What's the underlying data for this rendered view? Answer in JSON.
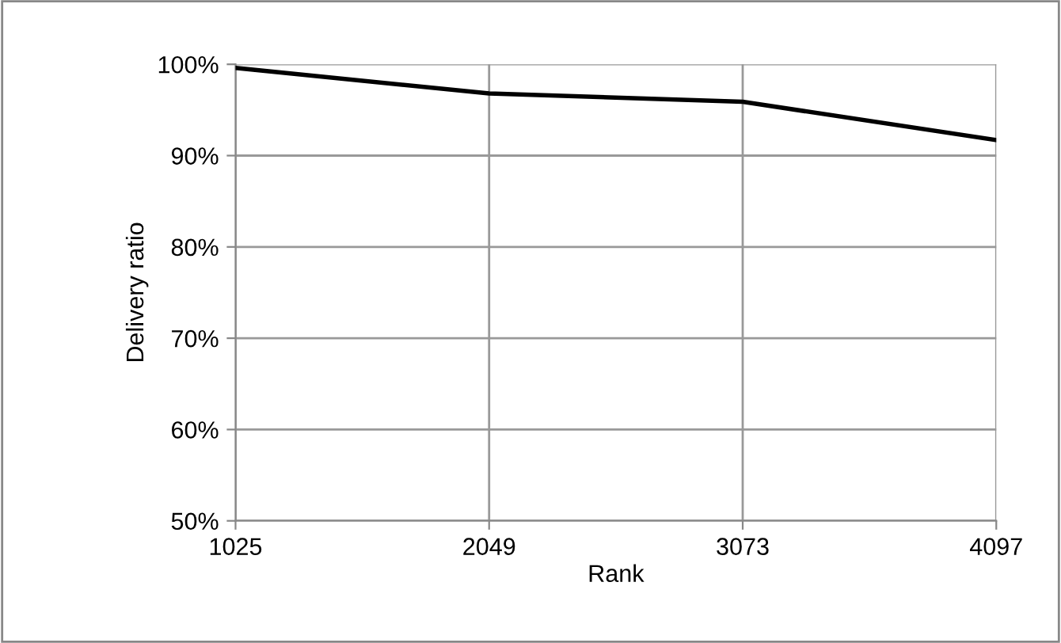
{
  "chart_data": {
    "type": "line",
    "xlabel": "Rank",
    "ylabel": "Delivery ratio",
    "x": [
      1025,
      2049,
      3073,
      4097
    ],
    "series": [
      {
        "color": "#000000",
        "values": [
          99.6,
          96.8,
          95.9,
          91.7
        ]
      }
    ],
    "xlim": [
      1025,
      4097
    ],
    "xticks": [
      1025,
      2049,
      3073,
      4097
    ],
    "ylim": [
      50,
      100
    ],
    "yticks": [
      {
        "value": 50,
        "label": "50%"
      },
      {
        "value": 60,
        "label": "60%"
      },
      {
        "value": 70,
        "label": "70%"
      },
      {
        "value": 80,
        "label": "80%"
      },
      {
        "value": 90,
        "label": "90%"
      },
      {
        "value": 100,
        "label": "100%"
      }
    ],
    "grid": true,
    "marker": "none",
    "line_style": "solid"
  }
}
